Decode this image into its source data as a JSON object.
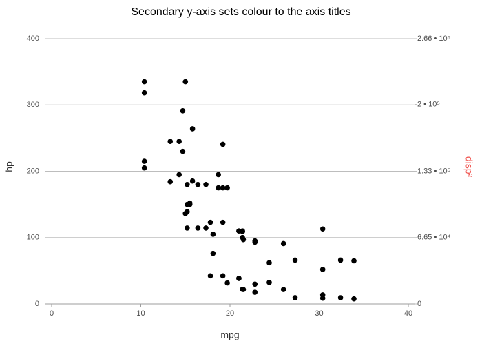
{
  "chart_data": {
    "type": "scatter",
    "title": "Secondary y-axis sets colour to the axis titles",
    "x_label": "mpg",
    "y_label": "hp",
    "y2_label": "disp²",
    "y2_label_color": "#f0524d",
    "xlim": [
      0,
      40
    ],
    "xticks": [
      0,
      10,
      20,
      30,
      40
    ],
    "ylim": [
      0,
      400
    ],
    "yticks": [
      0,
      100,
      200,
      300,
      400
    ],
    "y2lim": [
      0,
      266000
    ],
    "y2ticks": [
      0,
      {
        "value": 66500,
        "label": "6.65 • 10⁴"
      },
      {
        "value": 133000,
        "label": "1.33 • 10⁵"
      },
      {
        "value": 200000,
        "label": "2 • 10⁵"
      },
      {
        "value": 266000,
        "label": "2.66 • 10⁵"
      }
    ],
    "grid": true,
    "x": [
      21,
      21,
      22.8,
      21.4,
      18.7,
      18.1,
      14.3,
      24.4,
      22.8,
      19.2,
      17.8,
      16.4,
      17.3,
      15.2,
      10.4,
      10.4,
      14.7,
      32.4,
      30.4,
      33.9,
      21.5,
      15.5,
      15.2,
      13.3,
      19.2,
      27.3,
      26,
      30.4,
      15.8,
      19.7,
      15,
      21.4
    ],
    "series": [
      {
        "color": "#000000",
        "values": [
          110,
          110,
          93,
          110,
          175,
          105,
          245,
          62,
          95,
          123,
          123,
          180,
          180,
          180,
          205,
          215,
          230,
          66,
          52,
          65,
          97,
          150,
          150,
          245,
          175,
          66,
          91,
          113,
          264,
          175,
          335,
          109
        ]
      },
      {
        "color": "#000000",
        "axis": "y2",
        "values": [
          25600,
          25600,
          11664,
          66564,
          129600,
          50625,
          129600,
          21521,
          19825,
          28090,
          28090,
          76066,
          76066,
          76066,
          222784,
          211600,
          193600,
          6194,
          5730,
          5055,
          14424,
          101124,
          92416,
          122500,
          160000,
          6241,
          14472,
          9044,
          123201,
          21025,
          90601,
          14641
        ]
      }
    ]
  }
}
